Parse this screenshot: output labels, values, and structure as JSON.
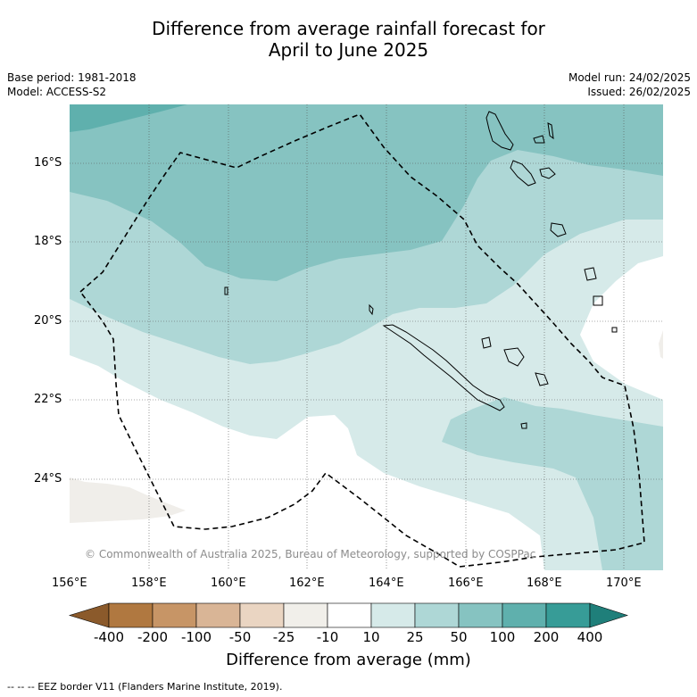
{
  "title": {
    "line1": "Difference from average rainfall forecast for",
    "line2": "April to June 2025"
  },
  "meta": {
    "base_period": "Base period: 1981-2018",
    "model": "Model: ACCESS-S2",
    "model_run": "Model run: 24/02/2025",
    "issued": "Issued: 26/02/2025"
  },
  "map": {
    "copyright": "© Commonwealth of Australia 2025, Bureau of Meteorology, supported by COSPPac",
    "lat_labels": [
      "16°S",
      "18°S",
      "20°S",
      "22°S",
      "24°S"
    ],
    "lon_labels": [
      "156°E",
      "158°E",
      "160°E",
      "162°E",
      "164°E",
      "166°E",
      "168°E",
      "170°E"
    ],
    "colors": {
      "c10_25": "#d6eae9",
      "c25_50": "#aed7d6",
      "c50_100": "#86c3c1",
      "c100_200": "#5fb0ad",
      "land_neutral": "#f0eeea"
    }
  },
  "colorbar": {
    "title": "Difference from average (mm)",
    "labels": [
      "-400",
      "-200",
      "-100",
      "-50",
      "-25",
      "-10",
      "10",
      "25",
      "50",
      "100",
      "200",
      "400"
    ],
    "colors": [
      "#8b5a2b",
      "#b07840",
      "#c79566",
      "#d9b596",
      "#ead5c2",
      "#f1efea",
      "#ffffff",
      "#d6eae9",
      "#aed7d6",
      "#86c3c1",
      "#5fb0ad",
      "#379c97",
      "#1f7f7a"
    ]
  },
  "footnote": "--  --  -- EEZ border V11 (Flanders Marine Institute, 2019)."
}
